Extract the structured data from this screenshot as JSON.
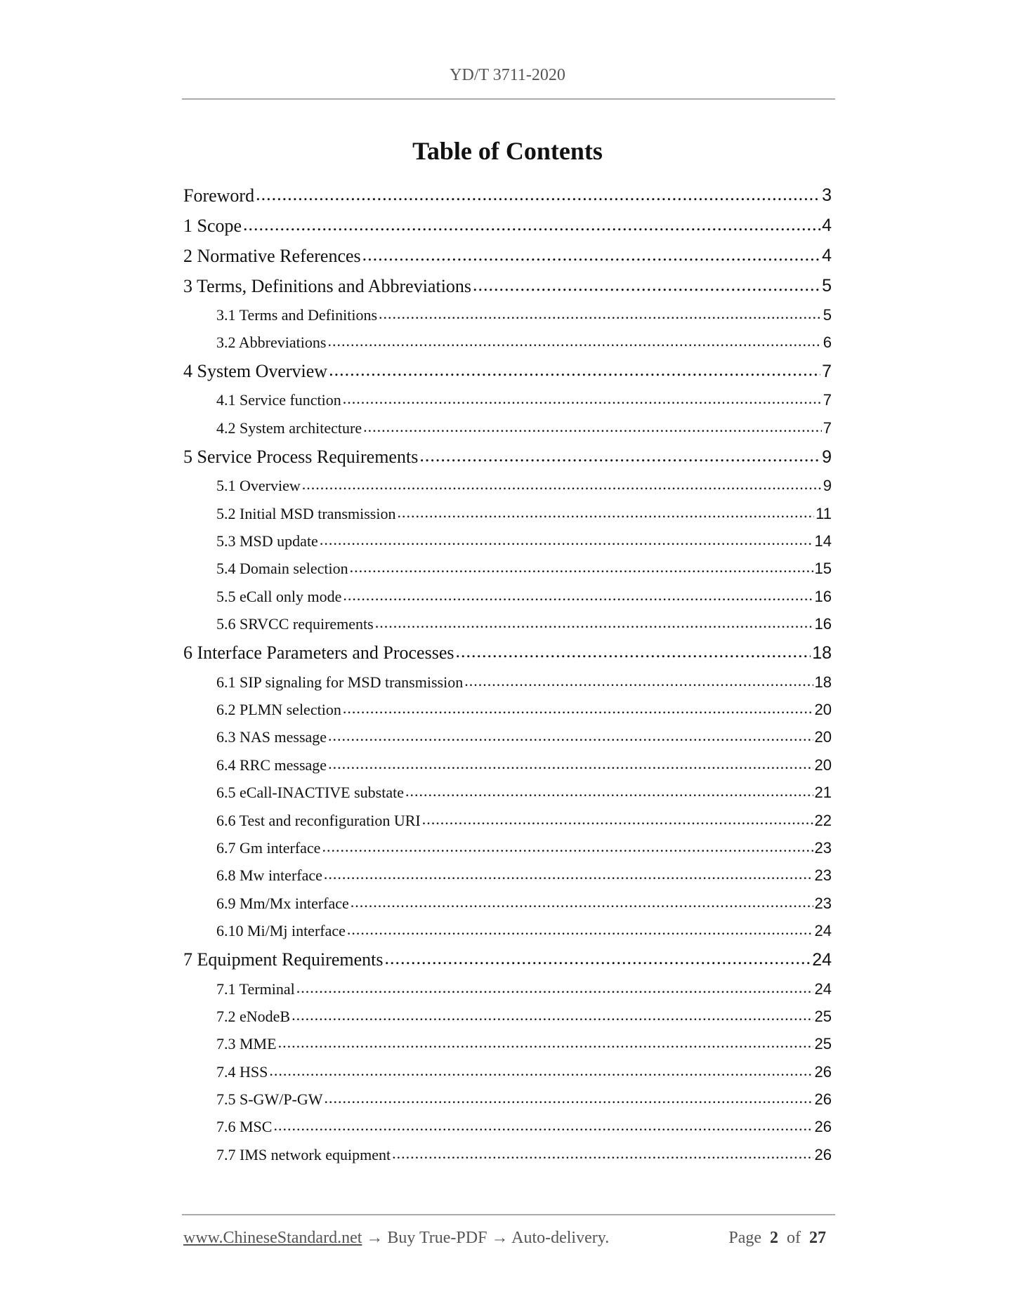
{
  "header": {
    "doc_id": "YD/T 3711-2020"
  },
  "title": "Table of Contents",
  "toc": [
    {
      "label": "Foreword",
      "page": "3",
      "level": 1
    },
    {
      "label": "1 Scope",
      "page": "4",
      "level": 1
    },
    {
      "label": "2 Normative References",
      "page": "4",
      "level": 1
    },
    {
      "label": "3 Terms, Definitions and Abbreviations",
      "page": "5",
      "level": 1
    },
    {
      "label": "3.1 Terms and Definitions",
      "page": "5",
      "level": 2
    },
    {
      "label": "3.2 Abbreviations",
      "page": "6",
      "level": 2
    },
    {
      "label": "4 System Overview",
      "page": "7",
      "level": 1
    },
    {
      "label": "4.1 Service function",
      "page": "7",
      "level": 2
    },
    {
      "label": "4.2 System architecture",
      "page": "7",
      "level": 2
    },
    {
      "label": "5 Service Process Requirements",
      "page": "9",
      "level": 1
    },
    {
      "label": "5.1 Overview",
      "page": "9",
      "level": 2
    },
    {
      "label": "5.2 Initial MSD transmission",
      "page": "11",
      "level": 2
    },
    {
      "label": "5.3 MSD update",
      "page": "14",
      "level": 2
    },
    {
      "label": "5.4 Domain selection",
      "page": "15",
      "level": 2
    },
    {
      "label": "5.5 eCall only mode",
      "page": "16",
      "level": 2
    },
    {
      "label": "5.6 SRVCC requirements",
      "page": "16",
      "level": 2
    },
    {
      "label": "6 Interface Parameters and Processes",
      "page": "18",
      "level": 1
    },
    {
      "label": "6.1 SIP signaling for MSD transmission",
      "page": "18",
      "level": 2
    },
    {
      "label": "6.2 PLMN selection",
      "page": "20",
      "level": 2
    },
    {
      "label": "6.3 NAS message",
      "page": "20",
      "level": 2
    },
    {
      "label": "6.4 RRC message",
      "page": "20",
      "level": 2
    },
    {
      "label": "6.5 eCall-INACTIVE substate",
      "page": "21",
      "level": 2
    },
    {
      "label": "6.6 Test and reconfiguration URI",
      "page": "22",
      "level": 2
    },
    {
      "label": "6.7 Gm interface",
      "page": "23",
      "level": 2
    },
    {
      "label": "6.8 Mw interface",
      "page": "23",
      "level": 2
    },
    {
      "label": "6.9 Mm/Mx interface",
      "page": "23",
      "level": 2
    },
    {
      "label": "6.10 Mi/Mj interface",
      "page": "24",
      "level": 2
    },
    {
      "label": "7 Equipment Requirements",
      "page": "24",
      "level": 1
    },
    {
      "label": "7.1 Terminal",
      "page": "24",
      "level": 2
    },
    {
      "label": "7.2 eNodeB",
      "page": "25",
      "level": 2
    },
    {
      "label": "7.3 MME",
      "page": "25",
      "level": 2
    },
    {
      "label": "7.4 HSS",
      "page": "26",
      "level": 2
    },
    {
      "label": "7.5 S-GW/P-GW",
      "page": "26",
      "level": 2
    },
    {
      "label": "7.6 MSC",
      "page": "26",
      "level": 2
    },
    {
      "label": "7.7 IMS network equipment",
      "page": "26",
      "level": 2
    }
  ],
  "footer": {
    "link": "www.ChineseStandard.net",
    "text": " → Buy True-PDF → Auto-delivery.",
    "page_word": "Page",
    "page_current": "2",
    "of_word": "of",
    "page_total": "27"
  }
}
